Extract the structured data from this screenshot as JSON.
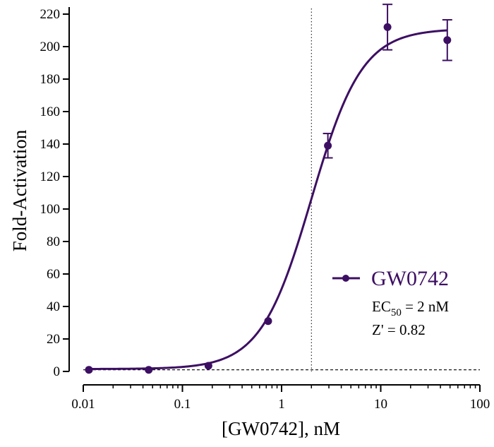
{
  "chart_data": {
    "type": "scatter",
    "xlabel": "[GW0742], nM",
    "ylabel": "Fold-Activation",
    "x_scale": "log",
    "xlim": [
      0.01,
      100
    ],
    "ylim": [
      0,
      220
    ],
    "x_ticks": [
      0.01,
      0.1,
      1,
      10,
      100
    ],
    "x_tick_labels": [
      "0.01",
      "0.1",
      "1",
      "10",
      "100"
    ],
    "y_ticks": [
      0,
      20,
      40,
      60,
      80,
      100,
      120,
      140,
      160,
      180,
      200,
      220
    ],
    "y_tick_labels": [
      "0",
      "20",
      "40",
      "60",
      "80",
      "100",
      "120",
      "140",
      "160",
      "180",
      "200",
      "220"
    ],
    "grid": false,
    "color": "#3d0f63",
    "series": [
      {
        "name": "GW0742",
        "x": [
          0.0114,
          0.0457,
          0.183,
          0.732,
          2.93,
          11.7,
          46.9
        ],
        "y": [
          1,
          1,
          3.5,
          31,
          139,
          212,
          204
        ],
        "error": [
          0,
          0,
          0,
          0,
          7.5,
          14,
          12.5
        ]
      }
    ],
    "fit_curve": {
      "model": "four-parameter logistic",
      "bottom": 1.5,
      "top": 211,
      "ec50": 2,
      "hill": 1.7
    },
    "reference_lines": {
      "vertical_x": 2,
      "horizontal_y": 1
    },
    "legend_position": "right",
    "annotations": {
      "ec50_prefix": "EC",
      "ec50_sub": "50",
      "ec50_value": " = 2 nM",
      "zprime": "Z' = 0.82"
    }
  }
}
